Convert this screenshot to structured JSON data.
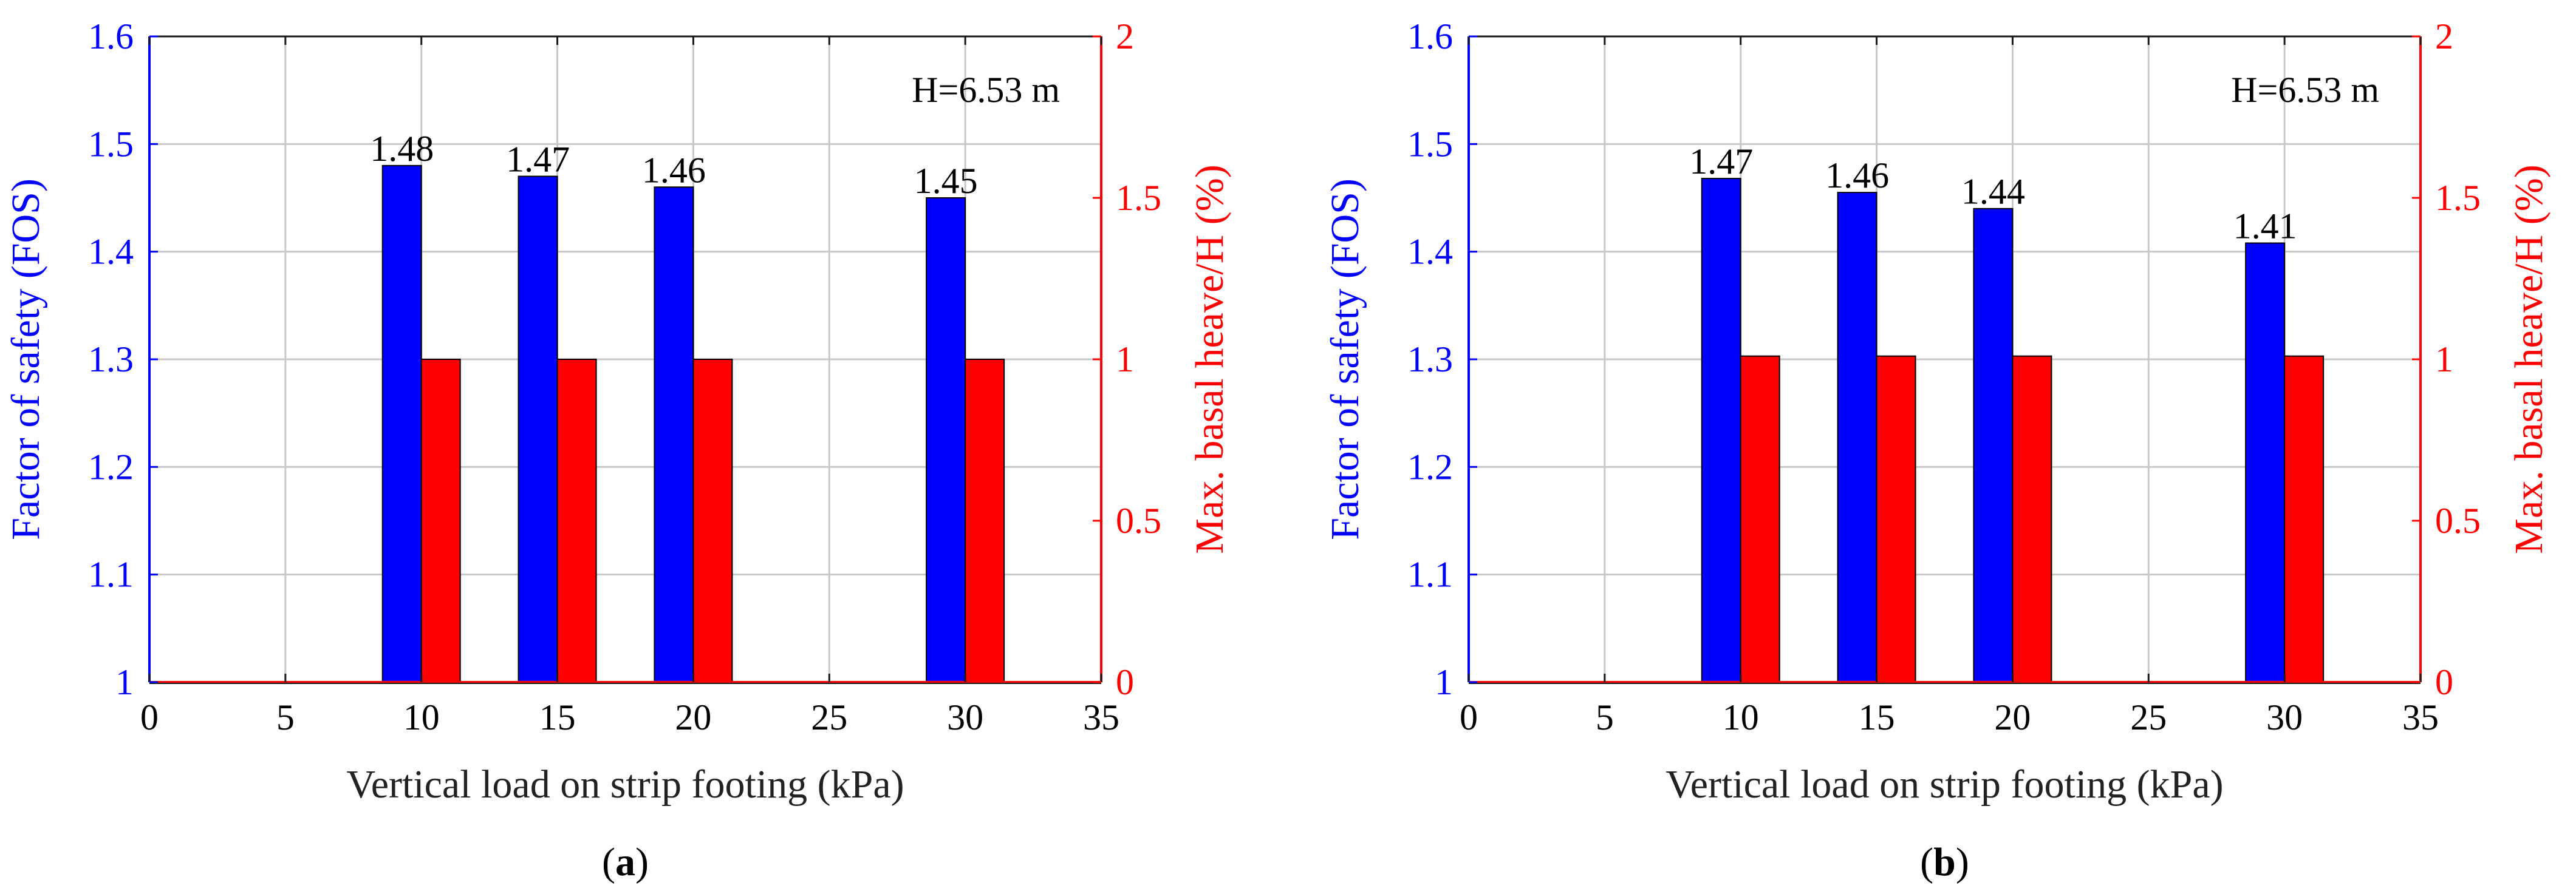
{
  "colors": {
    "fos": "#0000ff",
    "heave": "#ff0000",
    "grid": "#c8c8c8",
    "axis": "#1a1a1a",
    "text": "#000000"
  },
  "chart_data": [
    {
      "id": "a",
      "type": "bar",
      "panel_label": "a",
      "xlabel": "Vertical load on strip footing (kPa)",
      "ylabel_left": "Factor of safety (FOS)",
      "ylabel_right": "Max. basal heave/H (%)",
      "annotation": "H=6.53 m",
      "xlim": [
        0,
        35
      ],
      "xticks": [
        "0",
        "5",
        "10",
        "15",
        "20",
        "25",
        "30",
        "35"
      ],
      "ylim_left": [
        1,
        1.6
      ],
      "yticks_left": [
        "1",
        "1.1",
        "1.2",
        "1.3",
        "1.4",
        "1.5",
        "1.6"
      ],
      "ylim_right": [
        0,
        2
      ],
      "yticks_right": [
        "0",
        "0.5",
        "1",
        "1.5",
        "2"
      ],
      "x": [
        10,
        15,
        20,
        30
      ],
      "series": [
        {
          "name": "Factor of safety (FOS)",
          "axis": "left",
          "values": [
            1.48,
            1.47,
            1.46,
            1.45
          ],
          "labels": [
            "1.48",
            "1.47",
            "1.46",
            "1.45"
          ]
        },
        {
          "name": "Max. basal heave/H (%)",
          "axis": "right",
          "values": [
            1.0,
            1.0,
            1.0,
            1.0
          ]
        }
      ],
      "grid": true
    },
    {
      "id": "b",
      "type": "bar",
      "panel_label": "b",
      "xlabel": "Vertical load on strip footing (kPa)",
      "ylabel_left": "Factor of safety (FOS)",
      "ylabel_right": "Max. basal heave/H (%)",
      "annotation": "H=6.53 m",
      "xlim": [
        0,
        35
      ],
      "xticks": [
        "0",
        "5",
        "10",
        "15",
        "20",
        "25",
        "30",
        "35"
      ],
      "ylim_left": [
        1,
        1.6
      ],
      "yticks_left": [
        "1",
        "1.1",
        "1.2",
        "1.3",
        "1.4",
        "1.5",
        "1.6"
      ],
      "ylim_right": [
        0,
        2
      ],
      "yticks_right": [
        "0",
        "0.5",
        "1",
        "1.5",
        "2"
      ],
      "x": [
        10,
        15,
        20,
        30
      ],
      "series": [
        {
          "name": "Factor of safety (FOS)",
          "axis": "left",
          "values": [
            1.468,
            1.455,
            1.44,
            1.408
          ],
          "labels": [
            "1.47",
            "1.46",
            "1.44",
            "1.41"
          ]
        },
        {
          "name": "Max. basal heave/H (%)",
          "axis": "right",
          "values": [
            1.01,
            1.01,
            1.01,
            1.01
          ]
        }
      ],
      "grid": true
    }
  ]
}
